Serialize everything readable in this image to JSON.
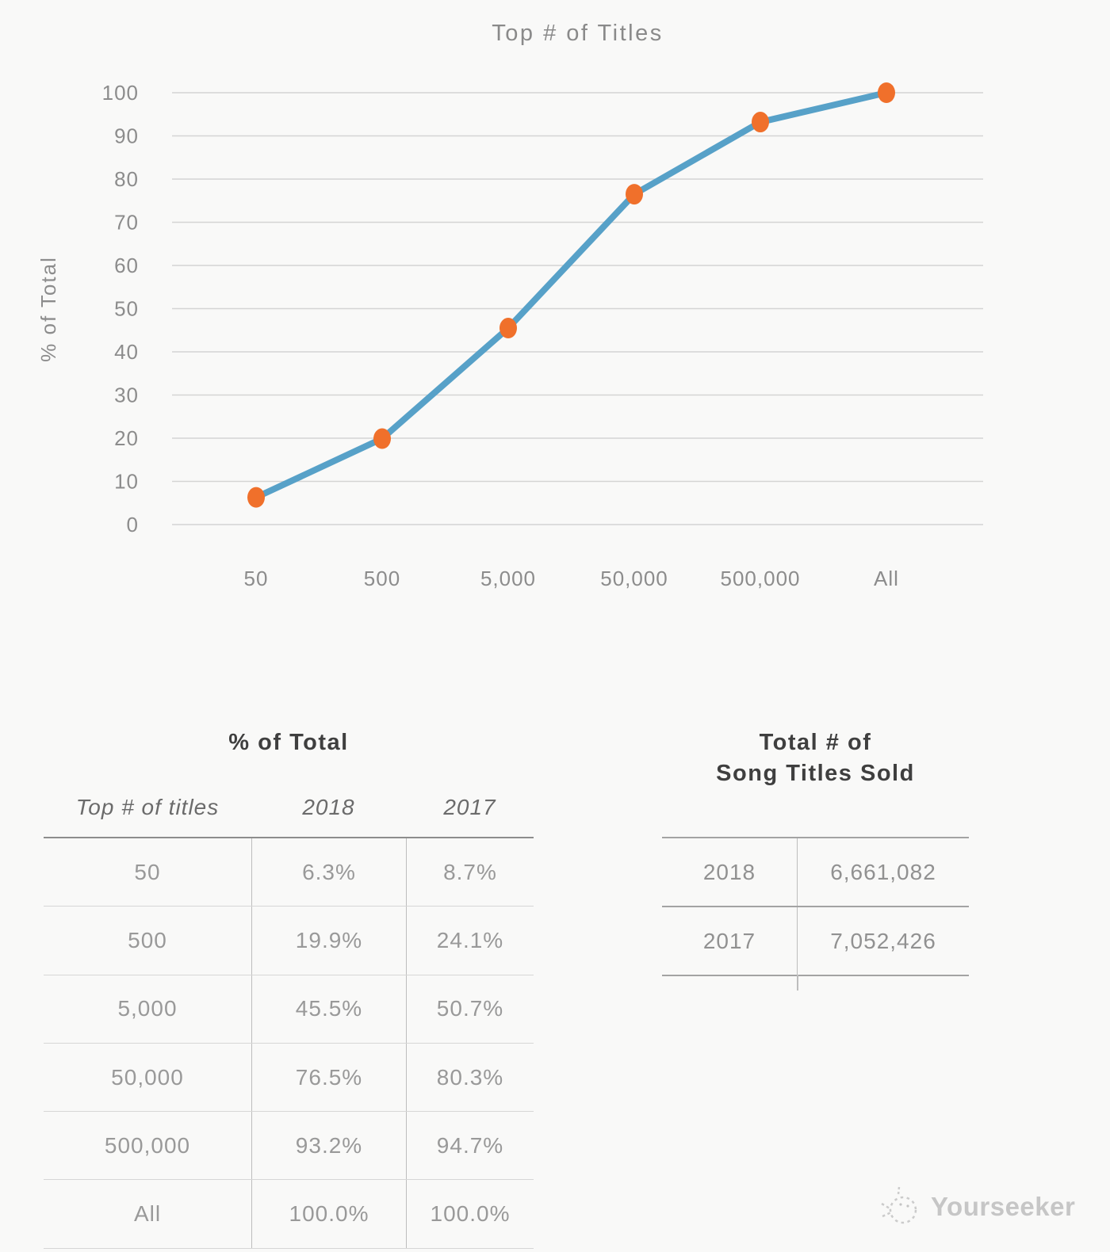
{
  "chart": {
    "title": "Top # of Titles",
    "y_axis_label": "% of Total"
  },
  "chart_data": {
    "type": "line",
    "title": "Top # of Titles",
    "xlabel": "",
    "ylabel": "% of Total",
    "categories": [
      "50",
      "500",
      "5,000",
      "50,000",
      "500,000",
      "All"
    ],
    "series": [
      {
        "name": "2018",
        "values": [
          6.3,
          19.9,
          45.5,
          76.5,
          93.2,
          100.0
        ]
      }
    ],
    "ylim": [
      0,
      100
    ],
    "yticks": [
      0,
      10,
      20,
      30,
      40,
      50,
      60,
      70,
      80,
      90,
      100
    ],
    "grid": true,
    "legend": false,
    "line_color": "#57a1c8",
    "marker_color": "#f0702b",
    "gridline_color": "#d4d4d4",
    "tick_color": "#8c8c8c"
  },
  "tables": {
    "percent": {
      "title": "% of Total",
      "columns": [
        "Top # of titles",
        "2018",
        "2017"
      ],
      "rows": [
        {
          "label": "50",
          "y2018": "6.3%",
          "y2017": "8.7%"
        },
        {
          "label": "500",
          "y2018": "19.9%",
          "y2017": "24.1%"
        },
        {
          "label": "5,000",
          "y2018": "45.5%",
          "y2017": "50.7%"
        },
        {
          "label": "50,000",
          "y2018": "76.5%",
          "y2017": "80.3%"
        },
        {
          "label": "500,000",
          "y2018": "93.2%",
          "y2017": "94.7%"
        },
        {
          "label": "All",
          "y2018": "100.0%",
          "y2017": "100.0%"
        }
      ]
    },
    "totals": {
      "title_line1": "Total # of",
      "title_line2": "Song Titles Sold",
      "rows": [
        {
          "label": "2018",
          "value": "6,661,082"
        },
        {
          "label": "2017",
          "value": "7,052,426"
        }
      ]
    }
  },
  "footer": {
    "brand": "Yourseeker"
  }
}
